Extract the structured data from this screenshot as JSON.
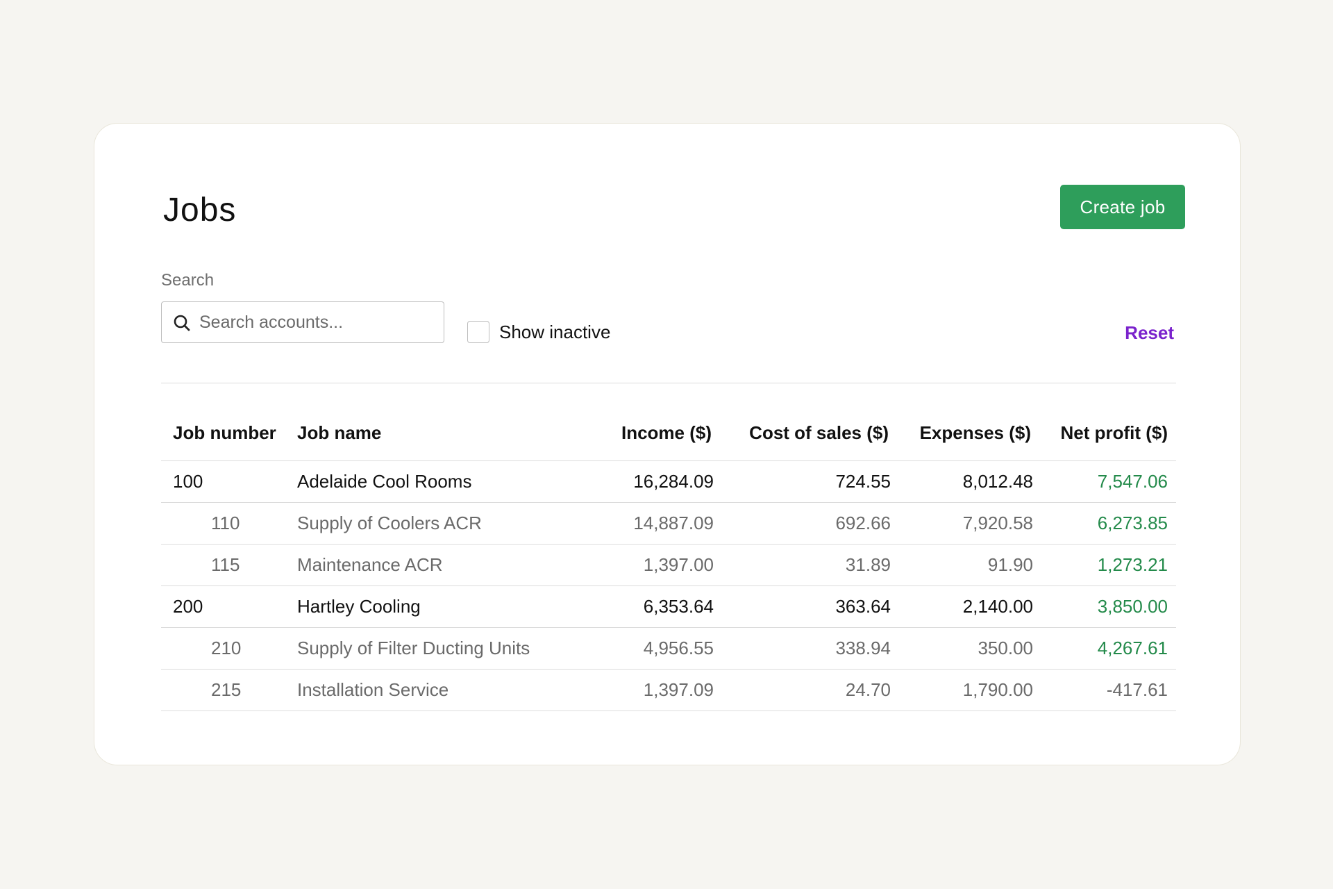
{
  "page": {
    "title": "Jobs",
    "create_button": "Create job",
    "accent_color": "#2e9e5b",
    "link_color": "#7a22cc"
  },
  "search": {
    "label": "Search",
    "placeholder": "Search accounts...",
    "value": ""
  },
  "filters": {
    "show_inactive_label": "Show inactive",
    "show_inactive_checked": false,
    "reset_label": "Reset"
  },
  "table": {
    "headers": [
      "Job number",
      "Job name",
      "Income ($)",
      "Cost of sales ($)",
      "Expenses ($)",
      "Net profit ($)"
    ],
    "rows": [
      {
        "level": "parent",
        "number": "100",
        "name": "Adelaide Cool Rooms",
        "income": "16,284.09",
        "cost_of_sales": "724.55",
        "expenses": "8,012.48",
        "net_profit": "7,547.06",
        "profit_status": "positive"
      },
      {
        "level": "child",
        "number": "110",
        "name": "Supply of Coolers ACR",
        "income": "14,887.09",
        "cost_of_sales": "692.66",
        "expenses": "7,920.58",
        "net_profit": "6,273.85",
        "profit_status": "positive"
      },
      {
        "level": "child",
        "number": "115",
        "name": "Maintenance ACR",
        "income": "1,397.00",
        "cost_of_sales": "31.89",
        "expenses": "91.90",
        "net_profit": "1,273.21",
        "profit_status": "positive"
      },
      {
        "level": "parent",
        "number": "200",
        "name": "Hartley Cooling",
        "income": "6,353.64",
        "cost_of_sales": "363.64",
        "expenses": "2,140.00",
        "net_profit": "3,850.00",
        "profit_status": "positive"
      },
      {
        "level": "child",
        "number": "210",
        "name": "Supply of Filter Ducting Units",
        "income": "4,956.55",
        "cost_of_sales": "338.94",
        "expenses": "350.00",
        "net_profit": "4,267.61",
        "profit_status": "positive"
      },
      {
        "level": "child",
        "number": "215",
        "name": "Installation Service",
        "income": "1,397.09",
        "cost_of_sales": "24.70",
        "expenses": "1,790.00",
        "net_profit": "-417.61",
        "profit_status": "negative"
      }
    ]
  }
}
